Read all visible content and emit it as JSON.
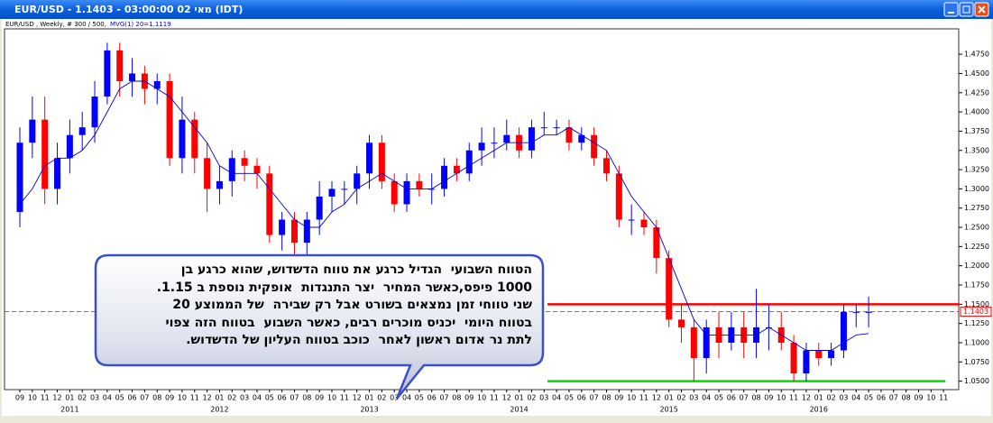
{
  "window_title": "EUR/USD - 1.1403 - 03:00:00  02 מאי (IDT)",
  "chart_data": {
    "type": "candlestick",
    "header": "EUR/USD , Weekly, # 300 / 500,",
    "indicator": "MVG(1) 20=1.1119",
    "categories": [
      "09",
      "10",
      "11",
      "12",
      "01",
      "02",
      "03",
      "04",
      "05",
      "06",
      "07",
      "08",
      "09",
      "10",
      "11",
      "12",
      "01",
      "02",
      "03",
      "04",
      "05",
      "06",
      "07",
      "08",
      "09",
      "10",
      "11",
      "12",
      "01",
      "02",
      "03",
      "04",
      "05",
      "06",
      "07",
      "08",
      "09",
      "10",
      "11",
      "12",
      "01",
      "02",
      "03",
      "04",
      "05",
      "06",
      "07",
      "08",
      "09",
      "10",
      "11",
      "12",
      "01",
      "02",
      "03",
      "04",
      "05",
      "06",
      "07",
      "08",
      "09",
      "10",
      "11",
      "12",
      "01",
      "02",
      "03",
      "04",
      "05",
      "06",
      "07",
      "08",
      "09",
      "10",
      "11"
    ],
    "years": [
      "2011",
      "2012",
      "2013",
      "2014",
      "2015",
      "2016"
    ],
    "open": [
      1.27,
      1.36,
      1.39,
      1.3,
      1.34,
      1.37,
      1.38,
      1.42,
      1.48,
      1.44,
      1.45,
      1.43,
      1.44,
      1.34,
      1.39,
      1.34,
      1.3,
      1.31,
      1.34,
      1.33,
      1.32,
      1.24,
      1.26,
      1.23,
      1.26,
      1.29,
      1.3,
      1.3,
      1.32,
      1.36,
      1.31,
      1.28,
      1.31,
      1.3,
      1.3,
      1.33,
      1.32,
      1.35,
      1.36,
      1.36,
      1.37,
      1.35,
      1.38,
      1.38,
      1.38,
      1.36,
      1.37,
      1.34,
      1.32,
      1.26,
      1.26,
      1.25,
      1.21,
      1.13,
      1.12,
      1.08,
      1.12,
      1.1,
      1.12,
      1.1,
      1.12,
      1.12,
      1.1,
      1.06,
      1.09,
      1.08,
      1.09,
      1.14,
      1.14,
      null,
      null,
      null,
      null,
      null,
      null
    ],
    "high": [
      1.38,
      1.42,
      1.42,
      1.36,
      1.39,
      1.4,
      1.44,
      1.49,
      1.49,
      1.47,
      1.46,
      1.45,
      1.45,
      1.42,
      1.4,
      1.36,
      1.33,
      1.35,
      1.35,
      1.34,
      1.33,
      1.27,
      1.27,
      1.27,
      1.31,
      1.31,
      1.31,
      1.33,
      1.37,
      1.37,
      1.32,
      1.32,
      1.32,
      1.32,
      1.34,
      1.34,
      1.36,
      1.38,
      1.38,
      1.39,
      1.38,
      1.39,
      1.4,
      1.39,
      1.39,
      1.38,
      1.38,
      1.35,
      1.33,
      1.28,
      1.27,
      1.26,
      1.22,
      1.15,
      1.13,
      1.13,
      1.14,
      1.14,
      1.14,
      1.17,
      1.15,
      1.14,
      1.11,
      1.1,
      1.1,
      1.1,
      1.15,
      1.15,
      1.16,
      null,
      null,
      null,
      null,
      null,
      null
    ],
    "low": [
      1.25,
      1.34,
      1.28,
      1.28,
      1.32,
      1.35,
      1.36,
      1.41,
      1.42,
      1.42,
      1.41,
      1.41,
      1.33,
      1.32,
      1.32,
      1.27,
      1.28,
      1.29,
      1.31,
      1.3,
      1.23,
      1.22,
      1.21,
      1.21,
      1.24,
      1.27,
      1.28,
      1.28,
      1.3,
      1.3,
      1.27,
      1.27,
      1.29,
      1.28,
      1.29,
      1.31,
      1.31,
      1.33,
      1.34,
      1.35,
      1.34,
      1.34,
      1.37,
      1.37,
      1.35,
      1.35,
      1.33,
      1.31,
      1.25,
      1.24,
      1.24,
      1.19,
      1.12,
      1.1,
      1.05,
      1.06,
      1.08,
      1.09,
      1.08,
      1.08,
      1.09,
      1.09,
      1.05,
      1.05,
      1.07,
      1.07,
      1.08,
      1.12,
      1.12,
      null,
      null,
      null,
      null,
      null,
      null
    ],
    "close": [
      1.36,
      1.39,
      1.3,
      1.34,
      1.37,
      1.38,
      1.42,
      1.48,
      1.44,
      1.45,
      1.43,
      1.44,
      1.34,
      1.39,
      1.34,
      1.3,
      1.31,
      1.34,
      1.33,
      1.32,
      1.24,
      1.26,
      1.23,
      1.26,
      1.29,
      1.3,
      1.3,
      1.32,
      1.36,
      1.31,
      1.28,
      1.31,
      1.3,
      1.3,
      1.33,
      1.32,
      1.35,
      1.36,
      1.36,
      1.37,
      1.35,
      1.38,
      1.38,
      1.38,
      1.36,
      1.37,
      1.34,
      1.32,
      1.26,
      1.26,
      1.25,
      1.21,
      1.13,
      1.12,
      1.08,
      1.12,
      1.1,
      1.12,
      1.1,
      1.12,
      1.12,
      1.1,
      1.06,
      1.09,
      1.08,
      1.09,
      1.14,
      1.14,
      1.14,
      null,
      null,
      null,
      null,
      null,
      null
    ],
    "moving_average": {
      "color": "#0000cc",
      "values": [
        1.28,
        1.3,
        1.33,
        1.34,
        1.34,
        1.35,
        1.37,
        1.4,
        1.43,
        1.44,
        1.44,
        1.43,
        1.42,
        1.4,
        1.38,
        1.36,
        1.33,
        1.32,
        1.32,
        1.32,
        1.3,
        1.28,
        1.26,
        1.25,
        1.25,
        1.27,
        1.28,
        1.3,
        1.31,
        1.32,
        1.31,
        1.3,
        1.3,
        1.3,
        1.31,
        1.32,
        1.33,
        1.34,
        1.35,
        1.36,
        1.36,
        1.36,
        1.37,
        1.37,
        1.38,
        1.37,
        1.36,
        1.35,
        1.32,
        1.29,
        1.27,
        1.25,
        1.21,
        1.17,
        1.13,
        1.11,
        1.11,
        1.11,
        1.11,
        1.11,
        1.12,
        1.11,
        1.1,
        1.09,
        1.09,
        1.09,
        1.1,
        1.11,
        1.1119,
        null,
        null,
        null,
        null,
        null,
        null
      ]
    },
    "up_color": "#0000ff",
    "down_color": "#ff0000",
    "ylim": [
      1.039,
      1.508
    ],
    "yticks": [
      {
        "value": 1.05,
        "label": "1.0500"
      },
      {
        "value": 1.075,
        "label": "1.0750"
      },
      {
        "value": 1.1,
        "label": "1.1000"
      },
      {
        "value": 1.125,
        "label": "1.1250"
      },
      {
        "value": 1.15,
        "label": "1.1500"
      },
      {
        "value": 1.175,
        "label": "1.1750"
      },
      {
        "value": 1.2,
        "label": "1.2000"
      },
      {
        "value": 1.225,
        "label": "1.2250"
      },
      {
        "value": 1.25,
        "label": "1.2500"
      },
      {
        "value": 1.275,
        "label": "1.2750"
      },
      {
        "value": 1.3,
        "label": "1.3000"
      },
      {
        "value": 1.325,
        "label": "1.3250"
      },
      {
        "value": 1.35,
        "label": "1.3500"
      },
      {
        "value": 1.375,
        "label": "1.3750"
      },
      {
        "value": 1.4,
        "label": "1.4000"
      },
      {
        "value": 1.425,
        "label": "1.4250"
      },
      {
        "value": 1.45,
        "label": "1.4500"
      },
      {
        "value": 1.475,
        "label": "1.4750"
      }
    ],
    "levels": [
      {
        "value": 1.15,
        "color": "#ff0000"
      },
      {
        "value": 1.05,
        "color": "#00dd00"
      }
    ],
    "current_price": {
      "value": 1.1403,
      "label": "1.1403"
    },
    "annotation": [
      "הטווח השבועי  הגדיל כרגע את טווח הדשדוש, שהוא כרגע בן",
      "1000 פיפס,כאשר המחיר  יצר התנגדות  אופקית נוספת ב 1.15.",
      "שני טווחי זמן נמצאים בשורט אבל רק שבירה  של הממוצע 20",
      "בטווח היומי  יכניס מוכרים רבים, כאשר השבוע  בטווח הזה צפוי",
      "לתת נר אדום ראשון לאחר  כוכב בטווח העליון של הדשדוש."
    ]
  }
}
